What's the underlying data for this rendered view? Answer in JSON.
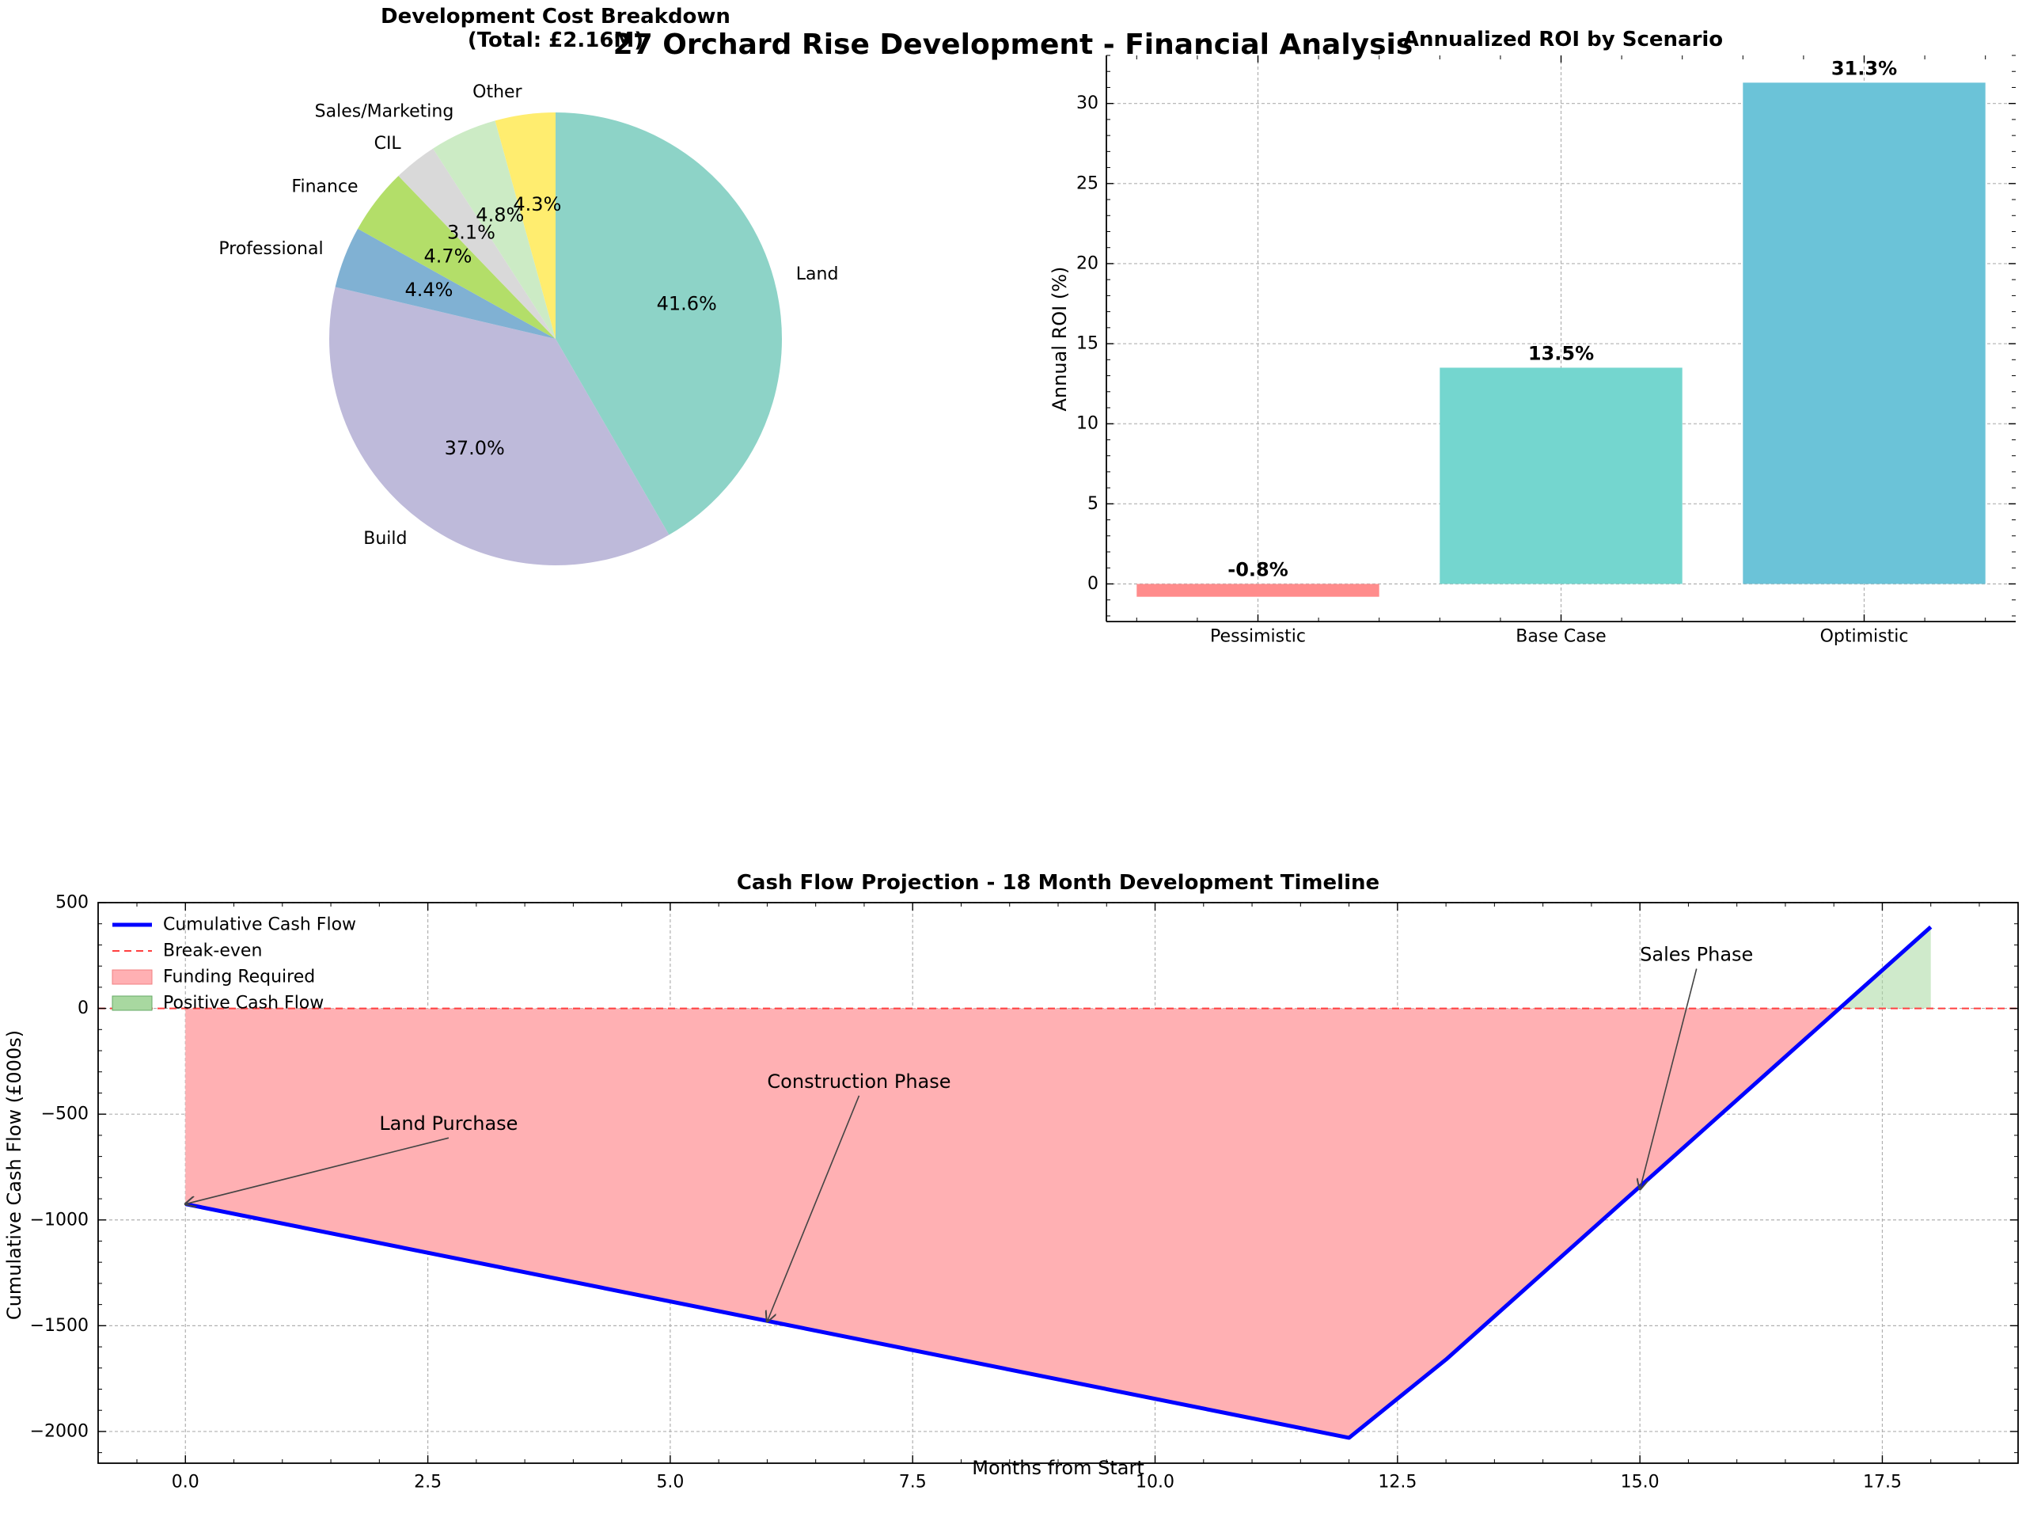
{
  "figure": {
    "title": "27 Orchard Rise Development - Financial Analysis",
    "colors": {
      "background": "#ffffff",
      "axis": "#000000",
      "grid": "#b0b0b0"
    }
  },
  "chart_data": [
    {
      "id": "cost_breakdown",
      "type": "pie",
      "title_lines": [
        "Development Cost Breakdown",
        "(Total: £2.16M)"
      ],
      "total": "£2.16M",
      "start_angle_deg": 90,
      "direction": "clockwise",
      "slices": [
        {
          "label": "Land",
          "pct": 41.6,
          "pct_label": "41.6%",
          "color": "#8dd3c7"
        },
        {
          "label": "Build",
          "pct": 37.0,
          "pct_label": "37.0%",
          "color": "#bebada"
        },
        {
          "label": "Professional",
          "pct": 4.4,
          "pct_label": "4.4%",
          "color": "#80b1d3"
        },
        {
          "label": "Finance",
          "pct": 4.7,
          "pct_label": "4.7%",
          "color": "#b3de69"
        },
        {
          "label": "CIL",
          "pct": 3.1,
          "pct_label": "3.1%",
          "color": "#d9d9d9"
        },
        {
          "label": "Sales/Marketing",
          "pct": 4.8,
          "pct_label": "4.8%",
          "color": "#ccebc5"
        },
        {
          "label": "Other",
          "pct": 4.3,
          "pct_label": "4.3%",
          "color": "#ffed6f"
        }
      ]
    },
    {
      "id": "roi",
      "type": "bar",
      "title": "Annualized ROI by Scenario",
      "ylabel": "Annual ROI (%)",
      "xlabel": "",
      "ylim": [
        -2.35,
        33.0
      ],
      "yticks": [
        0,
        5,
        10,
        15,
        20,
        25,
        30
      ],
      "grid": true,
      "categories": [
        "Pessimistic",
        "Base Case",
        "Optimistic"
      ],
      "values": [
        -0.8,
        13.5,
        31.3
      ],
      "value_labels": [
        "-0.8%",
        "13.5%",
        "31.3%"
      ],
      "colors": [
        "#ff8c8c",
        "#74d6cf",
        "#6bc3d8"
      ]
    },
    {
      "id": "cash_flow",
      "type": "line",
      "title": "Cash Flow Projection - 18 Month Development Timeline",
      "xlabel": "Months from Start",
      "ylabel": "Cumulative Cash Flow (£000s)",
      "xlim": [
        -0.9,
        18.9
      ],
      "ylim": [
        -2150,
        500
      ],
      "xticks": [
        0.0,
        2.5,
        5.0,
        7.5,
        10.0,
        12.5,
        15.0,
        17.5
      ],
      "xtick_labels": [
        "0.0",
        "2.5",
        "5.0",
        "7.5",
        "10.0",
        "12.5",
        "15.0",
        "17.5"
      ],
      "yticks": [
        -2000,
        -1500,
        -1000,
        -500,
        0,
        500
      ],
      "ytick_labels": [
        "−2000",
        "−1500",
        "−1000",
        "−500",
        "0",
        "500"
      ],
      "grid": true,
      "legend_position": "top-left",
      "legend": [
        {
          "label": "Cumulative Cash Flow",
          "kind": "line",
          "color": "#0000ff"
        },
        {
          "label": "Break-even",
          "kind": "dashed",
          "color": "#ff4040"
        },
        {
          "label": "Funding Required",
          "kind": "patch",
          "color": "#ffb0b3",
          "edge": "#f08080"
        },
        {
          "label": "Positive Cash Flow",
          "kind": "patch",
          "color": "#a8d8a0",
          "edge": "#66aa66"
        }
      ],
      "series": [
        {
          "name": "Cumulative Cash Flow",
          "color": "#0000ff",
          "x": [
            0,
            12,
            13,
            18
          ],
          "y": [
            -925,
            -2030,
            -1660,
            385
          ]
        }
      ],
      "break_even": 0,
      "annotations": [
        {
          "text": "Land Purchase",
          "text_x": 2.0,
          "text_y": -575,
          "target_x": 0.0,
          "target_y": -925
        },
        {
          "text": "Construction Phase",
          "text_x": 6.0,
          "text_y": -375,
          "target_x": 6.0,
          "target_y": -1480
        },
        {
          "text": "Sales Phase",
          "text_x": 15.0,
          "text_y": 225,
          "target_x": 15.0,
          "target_y": -855
        }
      ]
    }
  ]
}
